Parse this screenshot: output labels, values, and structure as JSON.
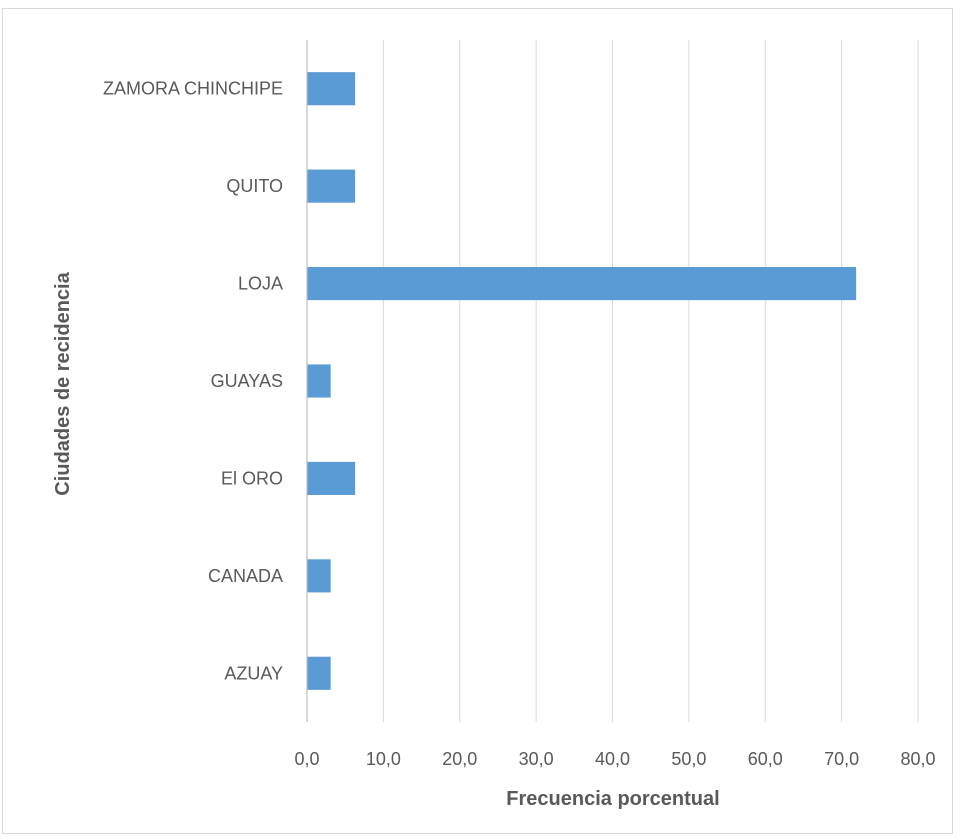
{
  "chart_data": {
    "type": "bar",
    "orientation": "horizontal",
    "categories": [
      "AZUAY",
      "CANADA",
      "El ORO",
      "GUAYAS",
      "LOJA",
      "QUITO",
      "ZAMORA CHINCHIPE"
    ],
    "values": [
      3.1,
      3.1,
      6.3,
      3.1,
      71.9,
      6.3,
      6.3
    ],
    "xlabel": "Frecuencia porcentual",
    "ylabel": "Ciudades de recidencia",
    "xlim": [
      0,
      80
    ],
    "xticks": [
      "0,0",
      "10,0",
      "20,0",
      "30,0",
      "40,0",
      "50,0",
      "60,0",
      "70,0",
      "80,0"
    ],
    "grid": "vertical",
    "bar_color": "#5b9bd5",
    "grid_color": "#d9d9d9",
    "axis_color": "#bfbfbf",
    "text_color": "#595959"
  }
}
